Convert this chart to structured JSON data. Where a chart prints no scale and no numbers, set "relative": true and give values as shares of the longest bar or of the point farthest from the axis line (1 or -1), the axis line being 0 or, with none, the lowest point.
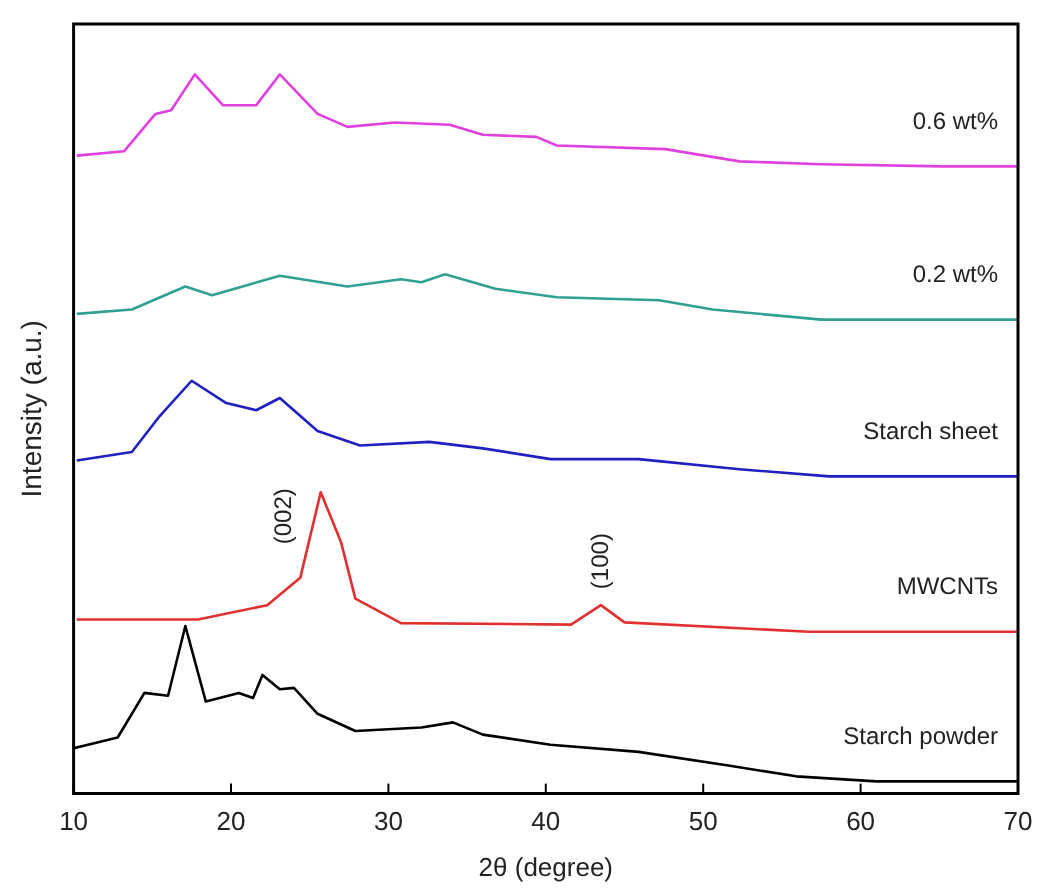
{
  "chart_data": {
    "type": "line",
    "relative": true,
    "xlabel": "2θ (degree)",
    "ylabel": "Intensity (a.u.)",
    "xlim": [
      10,
      70
    ],
    "xticks": [
      10,
      20,
      30,
      40,
      50,
      60,
      70
    ],
    "grid": false,
    "legend": false,
    "marker": "none",
    "line_style": "solid",
    "annotations": [
      {
        "text": "(002)",
        "x": 25.7,
        "y": 0.419
      },
      {
        "text": "(100)",
        "x": 43.5,
        "y": 0.262
      }
    ],
    "series": [
      {
        "name": "0.6 wt%",
        "color": "#e040e0",
        "x": [
          10.2,
          13.2,
          15.2,
          16.2,
          17.7,
          19.5,
          21.6,
          23.1,
          25.5,
          27.4,
          30.4,
          33.9,
          36.0,
          39.4,
          40.7,
          47.6,
          52.3,
          57.5,
          65.2,
          70
        ],
        "values": [
          0.887,
          0.893,
          0.945,
          0.95,
          1.0,
          0.957,
          0.957,
          1.0,
          0.945,
          0.927,
          0.933,
          0.93,
          0.916,
          0.913,
          0.901,
          0.896,
          0.879,
          0.875,
          0.872,
          0.872
        ]
      },
      {
        "name": "0.2 wt%",
        "color": "#30a090",
        "x": [
          10.2,
          13.7,
          17.1,
          18.8,
          23.1,
          27.4,
          30.8,
          32.1,
          33.6,
          36.8,
          40.7,
          47.2,
          50.6,
          57.5,
          70
        ],
        "values": [
          0.667,
          0.673,
          0.705,
          0.693,
          0.72,
          0.705,
          0.715,
          0.711,
          0.722,
          0.702,
          0.69,
          0.686,
          0.673,
          0.659,
          0.659
        ]
      },
      {
        "name": "Starch sheet",
        "color": "#2020c0",
        "x": [
          10.2,
          13.7,
          15.4,
          17.5,
          19.7,
          21.6,
          23.1,
          25.5,
          28.2,
          32.6,
          36.0,
          40.3,
          45.9,
          52.3,
          58.0,
          70
        ],
        "values": [
          0.463,
          0.475,
          0.523,
          0.574,
          0.543,
          0.533,
          0.55,
          0.504,
          0.484,
          0.489,
          0.48,
          0.465,
          0.465,
          0.451,
          0.441,
          0.441
        ]
      },
      {
        "name": "MWCNTs",
        "color": "#e03030",
        "x": [
          10.2,
          17.9,
          22.3,
          24.4,
          25.7,
          27.0,
          27.9,
          30.8,
          41.6,
          43.5,
          45.0,
          56.7,
          70
        ],
        "values": [
          0.242,
          0.242,
          0.262,
          0.3,
          0.419,
          0.349,
          0.271,
          0.237,
          0.235,
          0.262,
          0.238,
          0.225,
          0.225
        ]
      },
      {
        "name": "Starch powder",
        "color": "#000000",
        "x": [
          10,
          12.8,
          14.5,
          16.0,
          17.1,
          18.4,
          20.5,
          21.4,
          22.0,
          23.1,
          24.0,
          25.5,
          27.9,
          32.1,
          34.1,
          36.0,
          40.3,
          45.9,
          51.6,
          55.9,
          61.0,
          70
        ],
        "values": [
          0.063,
          0.078,
          0.14,
          0.136,
          0.233,
          0.128,
          0.14,
          0.133,
          0.165,
          0.145,
          0.147,
          0.111,
          0.087,
          0.092,
          0.099,
          0.082,
          0.068,
          0.058,
          0.039,
          0.024,
          0.017,
          0.017
        ]
      }
    ]
  }
}
